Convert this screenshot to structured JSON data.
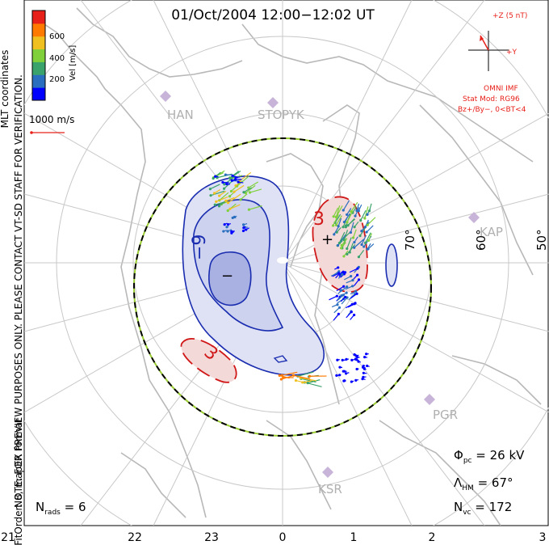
{
  "title": "01/Oct/2004  12:00−12:02  UT",
  "coord_label": "MLT coordinates",
  "colorbar": {
    "label": "Vel [m/s]",
    "ticks": [
      "600",
      "400",
      "200"
    ],
    "colors": [
      "#0000ff",
      "#2a6fbf",
      "#3aa36b",
      "#7fd03a",
      "#f0c020",
      "#ff7a00",
      "#e8201a"
    ]
  },
  "vector_scale": "1000 m/s",
  "imf": {
    "plus_z": "+Z (5 nT)",
    "plus_y": "+Y",
    "source": "OMNI IMF",
    "model": "Stat Mod: RG96",
    "condition": "Bz+/By−, 0<BT<4"
  },
  "side_note_1": "NOTE: FOR PREVIEW PURPOSES ONLY. PLEASE CONTACT VT-SD STAFF FOR VERIFICATION.",
  "side_note_2": "FitOrder: 8, mapEX format",
  "stations": [
    "HAN",
    "STO",
    "PYK",
    "KAP",
    "PGR",
    "KSR"
  ],
  "latitude_labels": [
    "70°",
    "60°",
    "50°"
  ],
  "contour_labels": {
    "neg": "−9",
    "pos": "3",
    "pos_lower": "3",
    "min_mark": "−",
    "max_mark": "+"
  },
  "stats": {
    "phi_sym": "Φ",
    "phi_sub": "pc",
    "phi_val": " = 26 kV",
    "lambda_sym": "Λ",
    "lambda_sub": "HM",
    "lambda_val": " = 67°",
    "nvc_sym": "N",
    "nvc_sub": "vc",
    "nvc_val": " = 172",
    "nrads_sym": "N",
    "nrads_sub": "rads",
    "nrads_val": " = 6"
  },
  "mlt_axis": [
    "21",
    "22",
    "23",
    "0",
    "1",
    "2",
    "3"
  ]
}
